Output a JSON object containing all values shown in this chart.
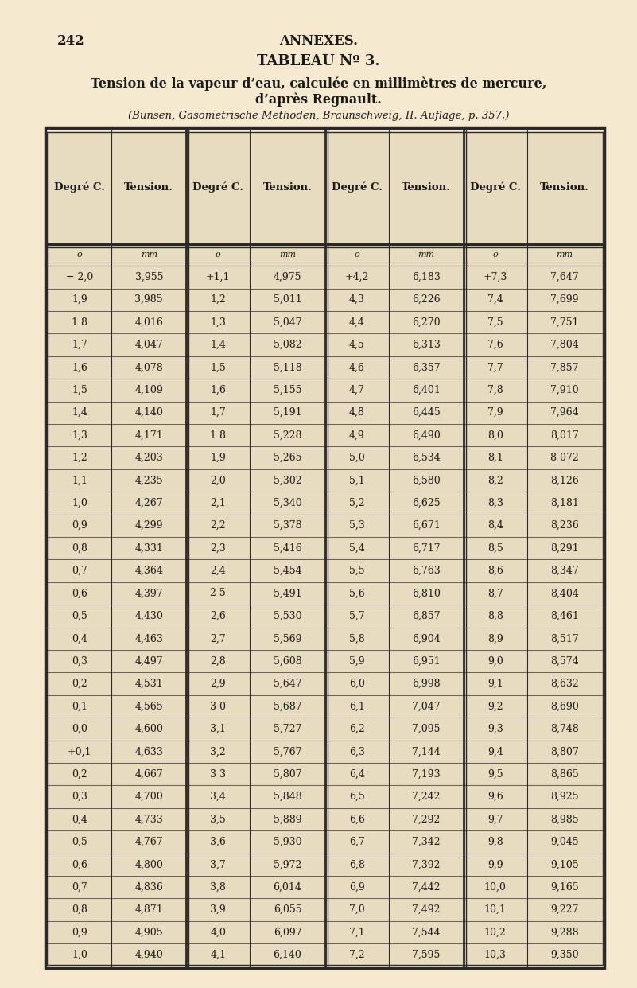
{
  "page_number": "242",
  "header_center": "ANNEXES.",
  "title": "TABLEAU Nº 3.",
  "subtitle1": "Tension de la vapeur d’eau, calculée en millimètres de mercure,",
  "subtitle2": "d’après Regnault.",
  "citation": "(Bunsen, Gasometrische Methoden, Braunschweig, II. Auflage, p. 357.)",
  "col_headers": [
    "Degré C.",
    "Tension.",
    "Degré C.",
    "Tension.",
    "Degré C.",
    "Tension.",
    "Degré C.",
    "Tension."
  ],
  "units_row": [
    "o",
    "mm",
    "o",
    "mm",
    "o",
    "mm",
    "o",
    "mm"
  ],
  "table_data": [
    [
      "− 2,0",
      "3,955",
      "+1,1",
      "4,975",
      "+4,2",
      "6,183",
      "+7,3",
      "7,647"
    ],
    [
      "1,9",
      "3,985",
      "1,2",
      "5,011",
      "4,3",
      "6,226",
      "7,4",
      "7,699"
    ],
    [
      "1 8",
      "4,016",
      "1,3",
      "5,047",
      "4,4",
      "6,270",
      "7,5",
      "7,751"
    ],
    [
      "1,7",
      "4,047",
      "1,4",
      "5,082",
      "4,5",
      "6,313",
      "7,6",
      "7,804"
    ],
    [
      "1,6",
      "4,078",
      "1,5",
      "5,118",
      "4,6",
      "6,357",
      "7,7",
      "7,857"
    ],
    [
      "1,5",
      "4,109",
      "1,6",
      "5,155",
      "4,7",
      "6,401",
      "7,8",
      "7,910"
    ],
    [
      "1,4",
      "4,140",
      "1,7",
      "5,191",
      "4,8",
      "6,445",
      "7,9",
      "7,964"
    ],
    [
      "1,3",
      "4,171",
      "1 8",
      "5,228",
      "4,9",
      "6,490",
      "8,0",
      "8,017"
    ],
    [
      "1,2",
      "4,203",
      "1,9",
      "5,265",
      "5,0",
      "6,534",
      "8,1",
      "8 072"
    ],
    [
      "1,1",
      "4,235",
      "2,0",
      "5,302",
      "5,1",
      "6,580",
      "8,2",
      "8,126"
    ],
    [
      "1,0",
      "4,267",
      "2,1",
      "5,340",
      "5,2",
      "6,625",
      "8,3",
      "8,181"
    ],
    [
      "0,9",
      "4,299",
      "2,2",
      "5,378",
      "5,3",
      "6,671",
      "8,4",
      "8,236"
    ],
    [
      "0,8",
      "4,331",
      "2,3",
      "5,416",
      "5,4",
      "6,717",
      "8,5",
      "8,291"
    ],
    [
      "0,7",
      "4,364",
      "2,4",
      "5,454",
      "5,5",
      "6,763",
      "8,6",
      "8,347"
    ],
    [
      "0,6",
      "4,397",
      "2 5",
      "5,491",
      "5,6",
      "6,810",
      "8,7",
      "8,404"
    ],
    [
      "0,5",
      "4,430",
      "2,6",
      "5,530",
      "5,7",
      "6,857",
      "8,8",
      "8,461"
    ],
    [
      "0,4",
      "4,463",
      "2,7",
      "5,569",
      "5,8",
      "6,904",
      "8,9",
      "8,517"
    ],
    [
      "0,3",
      "4,497",
      "2,8",
      "5,608",
      "5,9",
      "6,951",
      "9,0",
      "8,574"
    ],
    [
      "0,2",
      "4,531",
      "2,9",
      "5,647",
      "6,0",
      "6,998",
      "9,1",
      "8,632"
    ],
    [
      "0,1",
      "4,565",
      "3 0",
      "5,687",
      "6,1",
      "7,047",
      "9,2",
      "8,690"
    ],
    [
      "0,0",
      "4,600",
      "3,1",
      "5,727",
      "6,2",
      "7,095",
      "9,3",
      "8,748"
    ],
    [
      "+0,1",
      "4,633",
      "3,2",
      "5,767",
      "6,3",
      "7,144",
      "9,4",
      "8,807"
    ],
    [
      "0,2",
      "4,667",
      "3 3",
      "5,807",
      "6,4",
      "7,193",
      "9,5",
      "8,865"
    ],
    [
      "0,3",
      "4,700",
      "3,4",
      "5,848",
      "6,5",
      "7,242",
      "9,6",
      "8,925"
    ],
    [
      "0,4",
      "4,733",
      "3,5",
      "5,889",
      "6,6",
      "7,292",
      "9,7",
      "8,985"
    ],
    [
      "0,5",
      "4,767",
      "3,6",
      "5,930",
      "6,7",
      "7,342",
      "9,8",
      "9,045"
    ],
    [
      "0,6",
      "4,800",
      "3,7",
      "5,972",
      "6,8",
      "7,392",
      "9,9",
      "9,105"
    ],
    [
      "0,7",
      "4,836",
      "3,8",
      "6,014",
      "6,9",
      "7,442",
      "10,0",
      "9,165"
    ],
    [
      "0,8",
      "4,871",
      "3,9",
      "6,055",
      "7,0",
      "7,492",
      "10,1",
      "9,227"
    ],
    [
      "0,9",
      "4,905",
      "4,0",
      "6,097",
      "7,1",
      "7,544",
      "10,2",
      "9,288"
    ],
    [
      "1,0",
      "4,940",
      "4,1",
      "6,140",
      "7,2",
      "7,595",
      "10,3",
      "9,350"
    ]
  ],
  "bg_color": "#f5ead0",
  "text_color": "#1a1a1a",
  "table_bg": "#e8dcc0",
  "border_color": "#2a2a2a"
}
